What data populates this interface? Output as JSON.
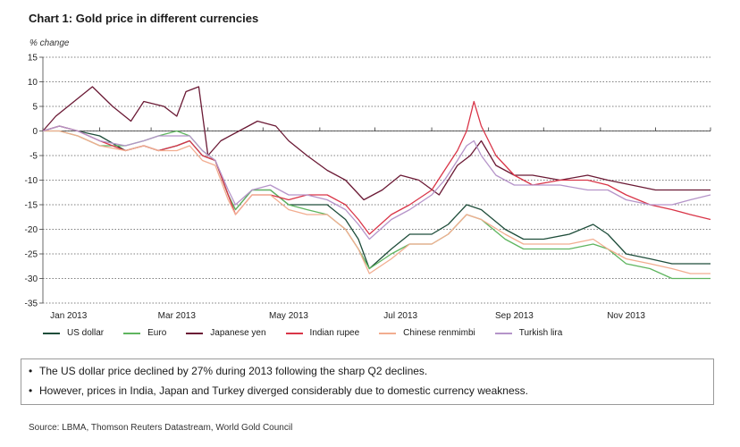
{
  "title": "Chart 1: Gold price in different currencies",
  "units": "% change",
  "source": "Source: LBMA, Thomson Reuters Datastream, World Gold Council",
  "notes": [
    "The US dollar price declined by 27% during 2013 following the sharp Q2 declines.",
    "However, prices in India, Japan and Turkey diverged considerably due to domestic currency weakness."
  ],
  "chart_data": {
    "type": "line",
    "title": "Chart 1: Gold price in different currencies",
    "ylabel": "% change",
    "ylim": [
      -35,
      15
    ],
    "yticks": [
      15,
      10,
      5,
      0,
      -5,
      -10,
      -15,
      -20,
      -25,
      -30,
      -35
    ],
    "xlim": [
      "2013-01-01",
      "2013-12-31"
    ],
    "xticks": [
      {
        "label": "Jan 2013",
        "date": "2013-01-15"
      },
      {
        "label": "Mar 2013",
        "date": "2013-03-15"
      },
      {
        "label": "May 2013",
        "date": "2013-05-15"
      },
      {
        "label": "Jul 2013",
        "date": "2013-07-15"
      },
      {
        "label": "Sep 2013",
        "date": "2013-09-15"
      },
      {
        "label": "Nov 2013",
        "date": "2013-11-15"
      }
    ],
    "grid": "horizontal-dotted",
    "legend_position": "bottom",
    "series": [
      {
        "name": "US dollar",
        "color": "#1e4d3a",
        "points": [
          [
            "2013-01-01",
            0
          ],
          [
            "2013-01-10",
            1
          ],
          [
            "2013-01-20",
            0
          ],
          [
            "2013-02-01",
            -1
          ],
          [
            "2013-02-15",
            -4
          ],
          [
            "2013-02-25",
            -3
          ],
          [
            "2013-03-05",
            -4
          ],
          [
            "2013-03-15",
            -3
          ],
          [
            "2013-03-22",
            -2
          ],
          [
            "2013-03-29",
            -5
          ],
          [
            "2013-04-05",
            -6
          ],
          [
            "2013-04-12",
            -13
          ],
          [
            "2013-04-16",
            -16
          ],
          [
            "2013-04-25",
            -12
          ],
          [
            "2013-05-05",
            -12
          ],
          [
            "2013-05-15",
            -15
          ],
          [
            "2013-05-25",
            -15
          ],
          [
            "2013-06-05",
            -15
          ],
          [
            "2013-06-15",
            -18
          ],
          [
            "2013-06-22",
            -22
          ],
          [
            "2013-06-28",
            -28
          ],
          [
            "2013-07-10",
            -24
          ],
          [
            "2013-07-20",
            -21
          ],
          [
            "2013-08-01",
            -21
          ],
          [
            "2013-08-10",
            -19
          ],
          [
            "2013-08-20",
            -15
          ],
          [
            "2013-08-28",
            -16
          ],
          [
            "2013-09-10",
            -20
          ],
          [
            "2013-09-20",
            -22
          ],
          [
            "2013-10-01",
            -22
          ],
          [
            "2013-10-15",
            -21
          ],
          [
            "2013-10-28",
            -19
          ],
          [
            "2013-11-05",
            -21
          ],
          [
            "2013-11-15",
            -25
          ],
          [
            "2013-11-28",
            -26
          ],
          [
            "2013-12-10",
            -27
          ],
          [
            "2013-12-20",
            -27
          ],
          [
            "2013-12-31",
            -27
          ]
        ]
      },
      {
        "name": "Euro",
        "color": "#5fb55f",
        "points": [
          [
            "2013-01-01",
            0
          ],
          [
            "2013-01-10",
            0
          ],
          [
            "2013-01-20",
            -1
          ],
          [
            "2013-02-01",
            -3
          ],
          [
            "2013-02-15",
            -3
          ],
          [
            "2013-02-25",
            -2
          ],
          [
            "2013-03-05",
            -1
          ],
          [
            "2013-03-15",
            0
          ],
          [
            "2013-03-22",
            -1
          ],
          [
            "2013-03-29",
            -4
          ],
          [
            "2013-04-05",
            -6
          ],
          [
            "2013-04-12",
            -13
          ],
          [
            "2013-04-16",
            -16
          ],
          [
            "2013-04-25",
            -12
          ],
          [
            "2013-05-05",
            -12
          ],
          [
            "2013-05-15",
            -15
          ],
          [
            "2013-05-25",
            -16
          ],
          [
            "2013-06-05",
            -17
          ],
          [
            "2013-06-15",
            -20
          ],
          [
            "2013-06-22",
            -24
          ],
          [
            "2013-06-28",
            -28
          ],
          [
            "2013-07-10",
            -25
          ],
          [
            "2013-07-20",
            -23
          ],
          [
            "2013-08-01",
            -23
          ],
          [
            "2013-08-10",
            -21
          ],
          [
            "2013-08-20",
            -17
          ],
          [
            "2013-08-28",
            -18
          ],
          [
            "2013-09-10",
            -22
          ],
          [
            "2013-09-20",
            -24
          ],
          [
            "2013-10-01",
            -24
          ],
          [
            "2013-10-15",
            -24
          ],
          [
            "2013-10-28",
            -23
          ],
          [
            "2013-11-05",
            -24
          ],
          [
            "2013-11-15",
            -27
          ],
          [
            "2013-11-28",
            -28
          ],
          [
            "2013-12-10",
            -30
          ],
          [
            "2013-12-20",
            -30
          ],
          [
            "2013-12-31",
            -30
          ]
        ]
      },
      {
        "name": "Japanese yen",
        "color": "#6b1a35",
        "points": [
          [
            "2013-01-01",
            0
          ],
          [
            "2013-01-08",
            3
          ],
          [
            "2013-01-18",
            6
          ],
          [
            "2013-01-28",
            9
          ],
          [
            "2013-02-08",
            5
          ],
          [
            "2013-02-18",
            2
          ],
          [
            "2013-02-25",
            6
          ],
          [
            "2013-03-08",
            5
          ],
          [
            "2013-03-15",
            3
          ],
          [
            "2013-03-20",
            8
          ],
          [
            "2013-03-27",
            9
          ],
          [
            "2013-04-01",
            -5
          ],
          [
            "2013-04-08",
            -2
          ],
          [
            "2013-04-18",
            0
          ],
          [
            "2013-04-28",
            2
          ],
          [
            "2013-05-08",
            1
          ],
          [
            "2013-05-15",
            -2
          ],
          [
            "2013-05-25",
            -5
          ],
          [
            "2013-06-05",
            -8
          ],
          [
            "2013-06-15",
            -10
          ],
          [
            "2013-06-25",
            -14
          ],
          [
            "2013-07-05",
            -12
          ],
          [
            "2013-07-15",
            -9
          ],
          [
            "2013-07-25",
            -10
          ],
          [
            "2013-08-05",
            -13
          ],
          [
            "2013-08-15",
            -7
          ],
          [
            "2013-08-22",
            -5
          ],
          [
            "2013-08-28",
            -2
          ],
          [
            "2013-09-05",
            -7
          ],
          [
            "2013-09-15",
            -9
          ],
          [
            "2013-09-25",
            -9
          ],
          [
            "2013-10-10",
            -10
          ],
          [
            "2013-10-25",
            -9
          ],
          [
            "2013-11-05",
            -10
          ],
          [
            "2013-11-18",
            -11
          ],
          [
            "2013-12-01",
            -12
          ],
          [
            "2013-12-15",
            -12
          ],
          [
            "2013-12-31",
            -12
          ]
        ]
      },
      {
        "name": "Indian rupee",
        "color": "#d93548",
        "points": [
          [
            "2013-01-01",
            0
          ],
          [
            "2013-01-10",
            1
          ],
          [
            "2013-01-20",
            0
          ],
          [
            "2013-02-01",
            -2
          ],
          [
            "2013-02-15",
            -4
          ],
          [
            "2013-02-25",
            -3
          ],
          [
            "2013-03-05",
            -4
          ],
          [
            "2013-03-15",
            -3
          ],
          [
            "2013-03-22",
            -2
          ],
          [
            "2013-03-29",
            -5
          ],
          [
            "2013-04-05",
            -6
          ],
          [
            "2013-04-12",
            -13
          ],
          [
            "2013-04-16",
            -17
          ],
          [
            "2013-04-25",
            -13
          ],
          [
            "2013-05-05",
            -13
          ],
          [
            "2013-05-15",
            -14
          ],
          [
            "2013-05-25",
            -13
          ],
          [
            "2013-06-05",
            -13
          ],
          [
            "2013-06-15",
            -15
          ],
          [
            "2013-06-22",
            -18
          ],
          [
            "2013-06-28",
            -21
          ],
          [
            "2013-07-10",
            -17
          ],
          [
            "2013-07-20",
            -15
          ],
          [
            "2013-08-01",
            -12
          ],
          [
            "2013-08-08",
            -8
          ],
          [
            "2013-08-15",
            -4
          ],
          [
            "2013-08-20",
            0
          ],
          [
            "2013-08-24",
            6
          ],
          [
            "2013-08-28",
            1
          ],
          [
            "2013-09-05",
            -5
          ],
          [
            "2013-09-15",
            -9
          ],
          [
            "2013-09-25",
            -11
          ],
          [
            "2013-10-10",
            -10
          ],
          [
            "2013-10-25",
            -10
          ],
          [
            "2013-11-05",
            -11
          ],
          [
            "2013-11-15",
            -13
          ],
          [
            "2013-11-28",
            -15
          ],
          [
            "2013-12-10",
            -16
          ],
          [
            "2013-12-20",
            -17
          ],
          [
            "2013-12-31",
            -18
          ]
        ]
      },
      {
        "name": "Chinese renmimbi",
        "color": "#f2ad90",
        "points": [
          [
            "2013-01-01",
            0
          ],
          [
            "2013-01-10",
            0
          ],
          [
            "2013-01-20",
            -1
          ],
          [
            "2013-02-01",
            -3
          ],
          [
            "2013-02-15",
            -4
          ],
          [
            "2013-02-25",
            -3
          ],
          [
            "2013-03-05",
            -4
          ],
          [
            "2013-03-15",
            -4
          ],
          [
            "2013-03-22",
            -3
          ],
          [
            "2013-03-29",
            -6
          ],
          [
            "2013-04-05",
            -7
          ],
          [
            "2013-04-12",
            -14
          ],
          [
            "2013-04-16",
            -17
          ],
          [
            "2013-04-25",
            -13
          ],
          [
            "2013-05-05",
            -13
          ],
          [
            "2013-05-15",
            -16
          ],
          [
            "2013-05-25",
            -17
          ],
          [
            "2013-06-05",
            -17
          ],
          [
            "2013-06-15",
            -20
          ],
          [
            "2013-06-22",
            -24
          ],
          [
            "2013-06-28",
            -29
          ],
          [
            "2013-07-10",
            -26
          ],
          [
            "2013-07-20",
            -23
          ],
          [
            "2013-08-01",
            -23
          ],
          [
            "2013-08-10",
            -21
          ],
          [
            "2013-08-20",
            -17
          ],
          [
            "2013-08-28",
            -18
          ],
          [
            "2013-09-10",
            -21
          ],
          [
            "2013-09-20",
            -23
          ],
          [
            "2013-10-01",
            -23
          ],
          [
            "2013-10-15",
            -23
          ],
          [
            "2013-10-28",
            -22
          ],
          [
            "2013-11-05",
            -24
          ],
          [
            "2013-11-15",
            -26
          ],
          [
            "2013-11-28",
            -27
          ],
          [
            "2013-12-10",
            -28
          ],
          [
            "2013-12-20",
            -29
          ],
          [
            "2013-12-31",
            -29
          ]
        ]
      },
      {
        "name": "Turkish lira",
        "color": "#b594c9",
        "points": [
          [
            "2013-01-01",
            0
          ],
          [
            "2013-01-10",
            1
          ],
          [
            "2013-01-20",
            0
          ],
          [
            "2013-02-01",
            -2
          ],
          [
            "2013-02-15",
            -3
          ],
          [
            "2013-02-25",
            -2
          ],
          [
            "2013-03-05",
            -1
          ],
          [
            "2013-03-15",
            -1
          ],
          [
            "2013-03-22",
            -1
          ],
          [
            "2013-03-29",
            -4
          ],
          [
            "2013-04-05",
            -6
          ],
          [
            "2013-04-12",
            -12
          ],
          [
            "2013-04-16",
            -15
          ],
          [
            "2013-04-25",
            -12
          ],
          [
            "2013-05-05",
            -11
          ],
          [
            "2013-05-15",
            -13
          ],
          [
            "2013-05-25",
            -13
          ],
          [
            "2013-06-05",
            -14
          ],
          [
            "2013-06-15",
            -16
          ],
          [
            "2013-06-22",
            -19
          ],
          [
            "2013-06-28",
            -22
          ],
          [
            "2013-07-10",
            -18
          ],
          [
            "2013-07-20",
            -16
          ],
          [
            "2013-08-01",
            -13
          ],
          [
            "2013-08-08",
            -10
          ],
          [
            "2013-08-15",
            -6
          ],
          [
            "2013-08-20",
            -3
          ],
          [
            "2013-08-24",
            -2
          ],
          [
            "2013-08-28",
            -5
          ],
          [
            "2013-09-05",
            -9
          ],
          [
            "2013-09-15",
            -11
          ],
          [
            "2013-09-25",
            -11
          ],
          [
            "2013-10-10",
            -11
          ],
          [
            "2013-10-25",
            -12
          ],
          [
            "2013-11-05",
            -12
          ],
          [
            "2013-11-15",
            -14
          ],
          [
            "2013-11-28",
            -15
          ],
          [
            "2013-12-10",
            -15
          ],
          [
            "2013-12-20",
            -14
          ],
          [
            "2013-12-31",
            -13
          ]
        ]
      }
    ]
  }
}
